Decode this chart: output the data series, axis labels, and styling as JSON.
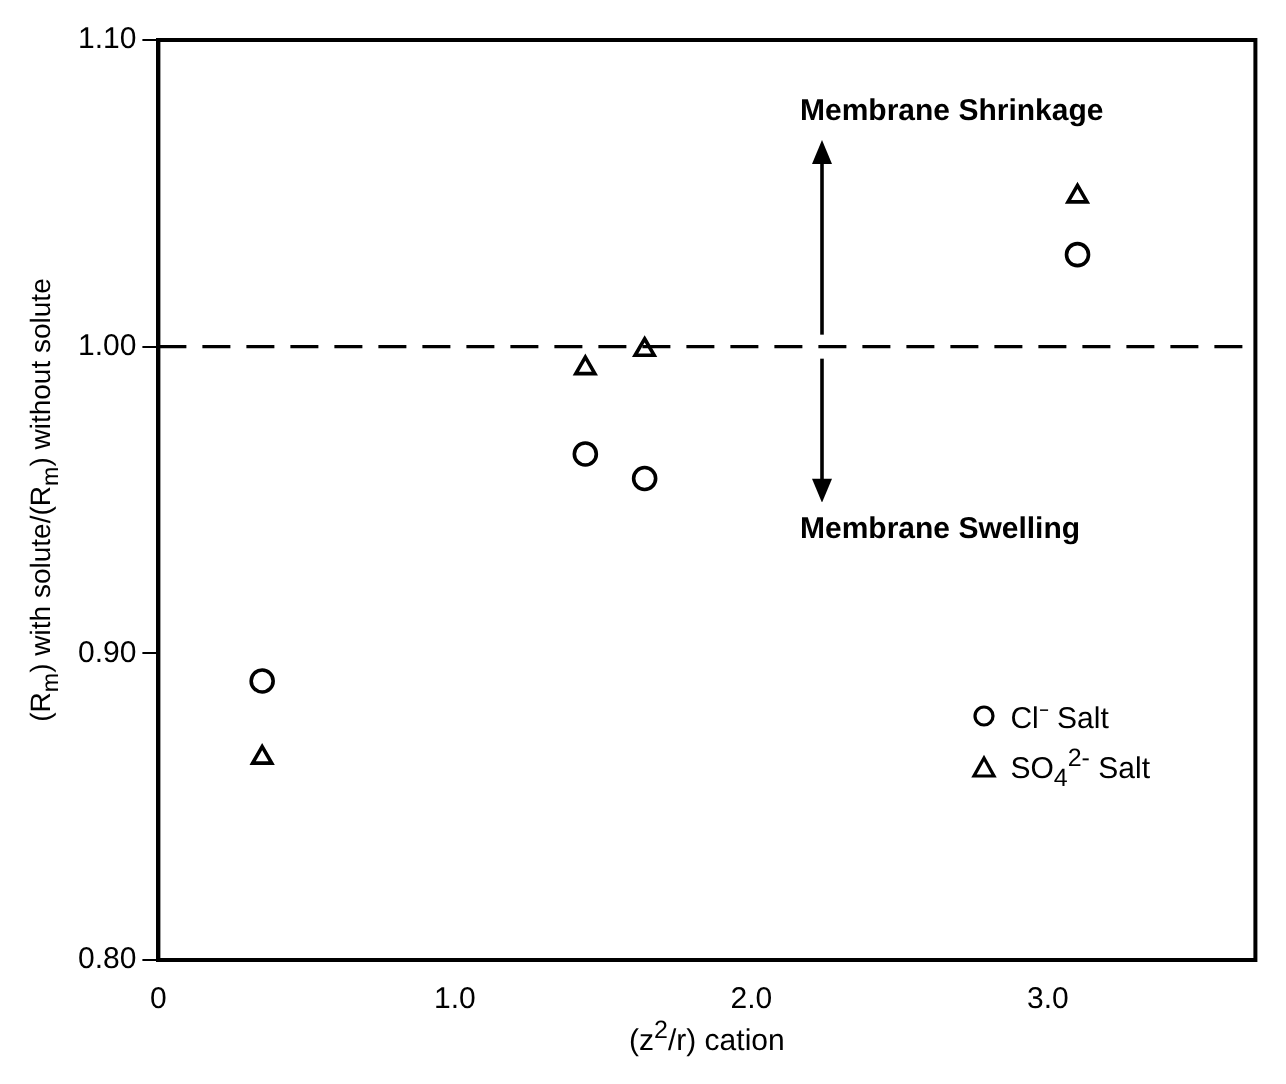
{
  "chart_data": {
    "type": "scatter",
    "xlabel": "(z$^{2}$/r) cation",
    "ylabel": "(R$_{m}$) with solute/(R$_{m}$) without solute",
    "xlim": [
      0,
      3.7
    ],
    "xticks": [
      {
        "value": 0,
        "label": "0"
      },
      {
        "value": 1,
        "label": "1.0"
      },
      {
        "value": 2,
        "label": "2.0"
      },
      {
        "value": 3,
        "label": "3.0"
      }
    ],
    "ylim": [
      0.8,
      1.1
    ],
    "yticks": [
      {
        "value": 0.8,
        "label": "0.80"
      },
      {
        "value": 0.9,
        "label": "0.90"
      },
      {
        "value": 1.0,
        "label": "1.00"
      },
      {
        "value": 1.1,
        "label": "1.10"
      }
    ],
    "series": [
      {
        "name": "Cl⁻ Salt",
        "color": "#000000",
        "marker": "circle",
        "x": [
          0.35,
          1.44,
          1.64,
          3.1
        ],
        "values": [
          0.891,
          0.965,
          0.957,
          1.03
        ]
      },
      {
        "name": "SO$_{4}$$^{2-}$ Salt",
        "color": "#000000",
        "marker": "triangle",
        "x": [
          0.35,
          1.44,
          1.64,
          3.1
        ],
        "values": [
          0.866,
          0.993,
          0.999,
          1.049
        ]
      }
    ],
    "ref_lines": [
      {
        "axis": "y",
        "value": 1.0,
        "line_style": "dashed",
        "color": "#000000"
      }
    ],
    "annotations": [
      "Membrane Shrinkage",
      "Membrane Swelling"
    ],
    "legend": "right",
    "grid": false
  }
}
